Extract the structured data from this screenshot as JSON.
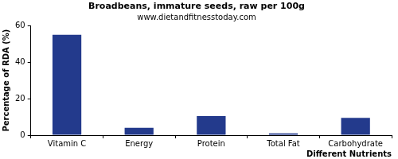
{
  "chart_data": {
    "type": "bar",
    "title": "Broadbeans, immature seeds, raw per 100g",
    "subtitle": "www.dietandfitnesstoday.com",
    "x_label": "Different Nutrients",
    "y_label": "Percentage of RDA (%)",
    "categories": [
      "Vitamin C",
      "Energy",
      "Protein",
      "Total Fat",
      "Carbohydrate"
    ],
    "values": [
      55,
      4,
      10.5,
      1,
      9.5
    ],
    "color": "#233a8c",
    "ylim": [
      0,
      60
    ],
    "yticks": [
      0,
      20,
      40,
      60
    ],
    "grid": false
  }
}
